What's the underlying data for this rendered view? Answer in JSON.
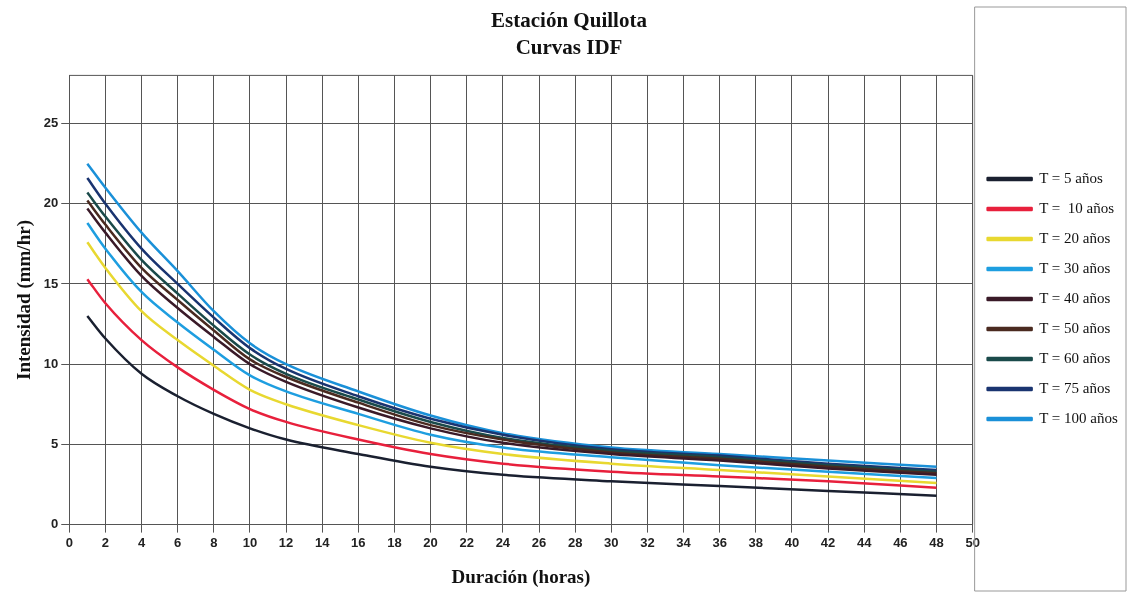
{
  "chart_data": {
    "type": "line",
    "title": "Estación Quillota",
    "subtitle": "Curvas IDF",
    "xlabel": "Duración (horas)",
    "ylabel": "Intensidad (mm/hr)",
    "x": [
      1,
      2,
      4,
      6,
      8,
      10,
      12,
      16,
      20,
      24,
      30,
      36,
      42,
      48
    ],
    "series": [
      {
        "name": "T = 5 años",
        "color": "#1a2030",
        "values": [
          13.0,
          11.6,
          9.4,
          8.0,
          6.9,
          6.0,
          5.3,
          4.4,
          3.6,
          3.1,
          2.7,
          2.4,
          2.1,
          1.8
        ]
      },
      {
        "name": "T =  10 años",
        "color": "#e8203c",
        "values": [
          15.3,
          13.8,
          11.5,
          9.8,
          8.4,
          7.2,
          6.4,
          5.3,
          4.4,
          3.8,
          3.3,
          3.0,
          2.7,
          2.3
        ]
      },
      {
        "name": "T = 20 años",
        "color": "#e8d830",
        "values": [
          17.6,
          16.0,
          13.3,
          11.5,
          9.9,
          8.4,
          7.5,
          6.2,
          5.1,
          4.4,
          3.8,
          3.4,
          3.0,
          2.6
        ]
      },
      {
        "name": "T = 30 años",
        "color": "#1e9ee0",
        "values": [
          18.8,
          17.2,
          14.5,
          12.6,
          10.9,
          9.3,
          8.3,
          6.9,
          5.6,
          4.8,
          4.2,
          3.7,
          3.3,
          2.9
        ]
      },
      {
        "name": "T = 40 años",
        "color": "#3a1a28",
        "values": [
          19.7,
          18.2,
          15.5,
          13.5,
          11.7,
          10.0,
          8.9,
          7.3,
          6.0,
          5.1,
          4.4,
          4.0,
          3.5,
          3.1
        ]
      },
      {
        "name": "T = 50 años",
        "color": "#4a2a20",
        "values": [
          20.2,
          18.7,
          16.0,
          14.0,
          12.1,
          10.3,
          9.2,
          7.6,
          6.2,
          5.3,
          4.5,
          4.1,
          3.6,
          3.2
        ]
      },
      {
        "name": "T = 60 años",
        "color": "#1a4a4a",
        "values": [
          20.7,
          19.2,
          16.5,
          14.4,
          12.4,
          10.6,
          9.4,
          7.8,
          6.4,
          5.4,
          4.6,
          4.2,
          3.7,
          3.3
        ]
      },
      {
        "name": "T = 75 años",
        "color": "#1a3470",
        "values": [
          21.6,
          20.0,
          17.2,
          15.0,
          12.9,
          11.0,
          9.7,
          8.0,
          6.6,
          5.6,
          4.7,
          4.3,
          3.8,
          3.4
        ]
      },
      {
        "name": "T = 100 años",
        "color": "#1a90d8",
        "values": [
          22.5,
          21.0,
          18.2,
          15.8,
          13.3,
          11.3,
          10.0,
          8.3,
          6.8,
          5.7,
          4.8,
          4.4,
          4.0,
          3.6
        ]
      }
    ],
    "xlim": [
      0,
      50
    ],
    "xticks": [
      0,
      2,
      4,
      6,
      8,
      10,
      12,
      14,
      16,
      18,
      20,
      22,
      24,
      26,
      28,
      30,
      32,
      34,
      36,
      38,
      40,
      42,
      44,
      46,
      48,
      50
    ],
    "ylim": [
      0,
      28
    ],
    "yticks": [
      0,
      5,
      10,
      15,
      20,
      25
    ],
    "grid": true,
    "legend": "right",
    "marker": "none",
    "line_style": "solid"
  }
}
